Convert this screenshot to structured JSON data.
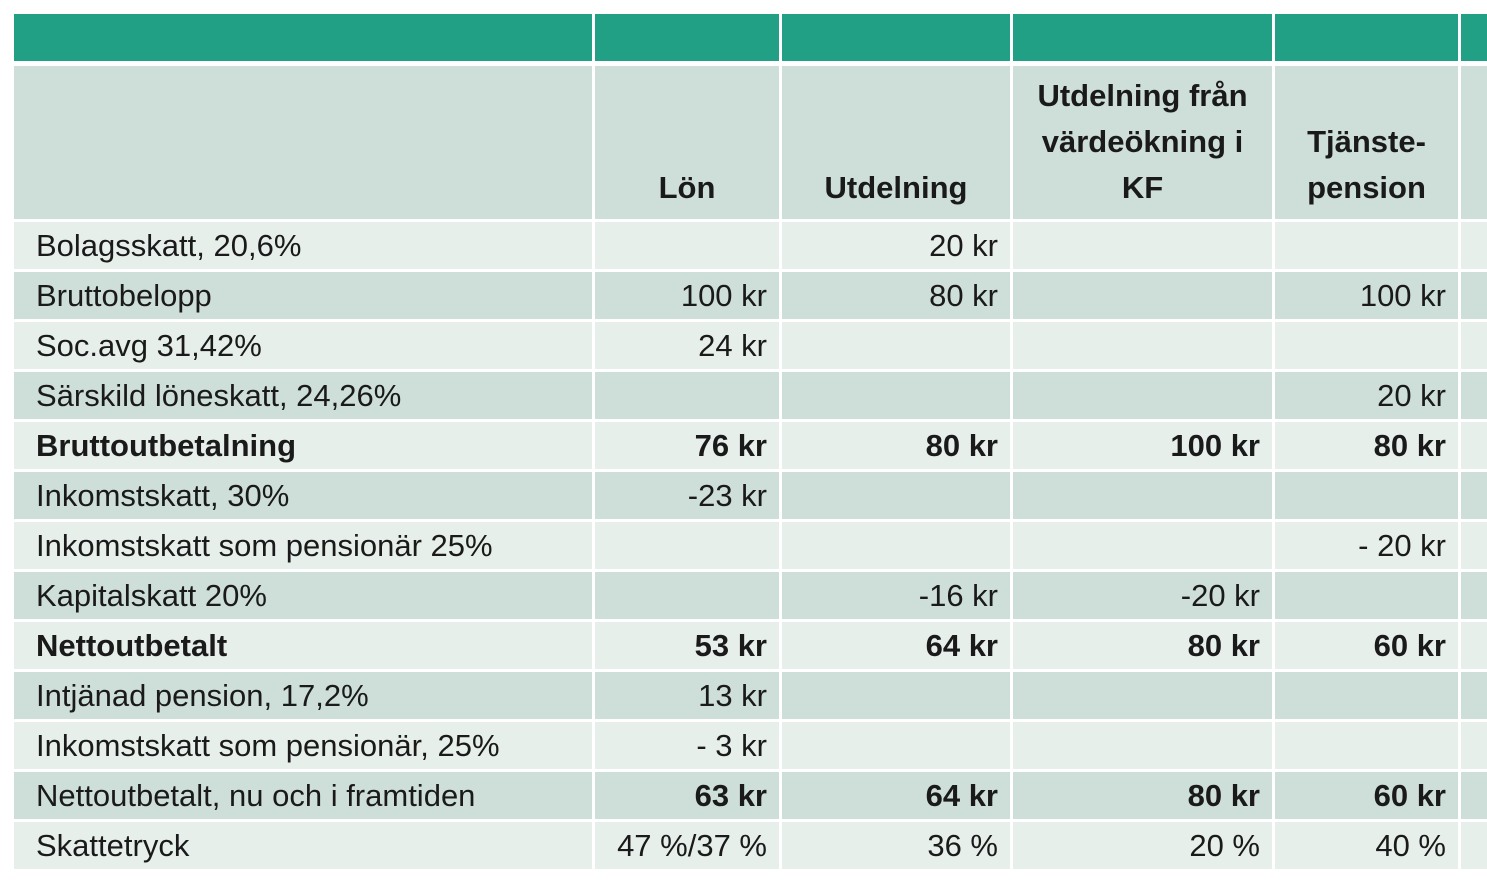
{
  "colors": {
    "header_band": "#21A085",
    "row_medium": "#CEDED8",
    "row_light": "#E7EFEB",
    "grid": "#FFFFFF",
    "text": "#1A1A1A"
  },
  "chart_data": {
    "type": "table",
    "title": "",
    "columns": [
      "",
      "Lön",
      "Utdelning",
      "Utdelning från värdeökning i KF",
      "Tjänste-pension",
      ""
    ],
    "rows": [
      {
        "label": "Bolagsskatt, 20,6%",
        "values": [
          "",
          "20 kr",
          "",
          ""
        ],
        "label_bold": false,
        "values_bold": false
      },
      {
        "label": "Bruttobelopp",
        "values": [
          "100 kr",
          "80 kr",
          "",
          "100 kr"
        ],
        "label_bold": false,
        "values_bold": false
      },
      {
        "label": "Soc.avg 31,42%",
        "values": [
          "24 kr",
          "",
          "",
          ""
        ],
        "label_bold": false,
        "values_bold": false
      },
      {
        "label": "Särskild löneskatt, 24,26%",
        "values": [
          "",
          "",
          "",
          "20 kr"
        ],
        "label_bold": false,
        "values_bold": false
      },
      {
        "label": "Bruttoutbetalning",
        "values": [
          "76 kr",
          "80 kr",
          "100 kr",
          "80 kr"
        ],
        "label_bold": true,
        "values_bold": true
      },
      {
        "label": "Inkomstskatt, 30%",
        "values": [
          "-23 kr",
          "",
          "",
          ""
        ],
        "label_bold": false,
        "values_bold": false
      },
      {
        "label": "Inkomstskatt som pensionär 25%",
        "values": [
          "",
          "",
          "",
          "- 20 kr"
        ],
        "label_bold": false,
        "values_bold": false
      },
      {
        "label": "Kapitalskatt 20%",
        "values": [
          "",
          "-16 kr",
          "-20 kr",
          ""
        ],
        "label_bold": false,
        "values_bold": false
      },
      {
        "label": "Nettoutbetalt",
        "values": [
          "53 kr",
          "64 kr",
          "80 kr",
          "60 kr"
        ],
        "label_bold": true,
        "values_bold": true
      },
      {
        "label": "Intjänad pension, 17,2%",
        "values": [
          "13 kr",
          "",
          "",
          ""
        ],
        "label_bold": false,
        "values_bold": false
      },
      {
        "label": "Inkomstskatt som pensionär, 25%",
        "values": [
          "- 3 kr",
          "",
          "",
          ""
        ],
        "label_bold": false,
        "values_bold": false
      },
      {
        "label": "Nettoutbetalt, nu och i framtiden",
        "values": [
          "63 kr",
          "64 kr",
          "80 kr",
          "60 kr"
        ],
        "label_bold": false,
        "values_bold": true
      },
      {
        "label": "Skattetryck",
        "values": [
          "47 %/37 %",
          "36 %",
          "20 %",
          "40 %"
        ],
        "label_bold": false,
        "values_bold": false
      }
    ]
  }
}
